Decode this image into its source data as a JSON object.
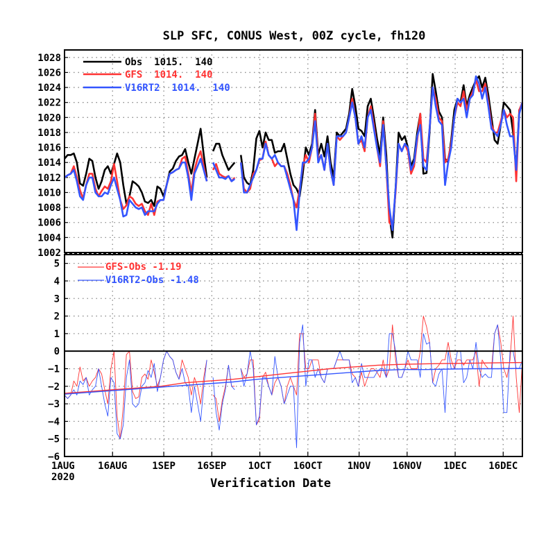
{
  "chart_data": [
    {
      "type": "line",
      "title": "SLP SFC, CONUS West, 00Z cycle, fh120",
      "xlabel": "Verification Date",
      "x_start": "2020-08-01",
      "x_end": "2020-12-22",
      "ylim": [
        1002,
        1029
      ],
      "yticks": [
        "1002",
        "1004",
        "1006",
        "1008",
        "1010",
        "1012",
        "1014",
        "1016",
        "1018",
        "1020",
        "1022",
        "1024",
        "1026",
        "1028"
      ],
      "grid": true,
      "legend_position": "top-left",
      "series": [
        {
          "name": "Obs",
          "legend_text": "Obs  1015.  140",
          "color": "#000000",
          "values": [
            1014.5,
            1015.0,
            1015.0,
            1015.2,
            1014.0,
            1011.2,
            1010.9,
            1012.5,
            1014.5,
            1014.2,
            1012.0,
            1010.5,
            1011.5,
            1013.0,
            1013.5,
            1012.5,
            1013.8,
            1015.2,
            1014.0,
            1011.0,
            1008.5,
            1009.5,
            1011.5,
            1011.2,
            1010.8,
            1010.0,
            1008.8,
            1008.6,
            1009.0,
            1008.2,
            1010.8,
            1010.5,
            1009.5,
            1011.0,
            1012.8,
            1013.2,
            1014.2,
            1014.8,
            1015.0,
            1015.8,
            1014.0,
            1012.5,
            1014.5,
            1016.5,
            1018.5,
            1015.0,
            1012.0,
            null,
            1015.5,
            1016.5,
            1016.5,
            1015.0,
            1014.0,
            1013.0,
            1013.5,
            1014.0,
            null,
            1015.0,
            1012.0,
            1011.3,
            1011.0,
            1013.0,
            1017.2,
            1018.2,
            1016.0,
            1018.0,
            1017.0,
            1017.0,
            1015.3,
            1015.5,
            1015.5,
            1016.5,
            1014.5,
            1012.5,
            1011.0,
            1010.5,
            1009.5,
            1012.5,
            1016.0,
            1015.0,
            1016.5,
            1021.0,
            1015.0,
            1016.5,
            1014.8,
            1017.5,
            1014.0,
            1012.0,
            1018.0,
            1017.5,
            1018.0,
            1018.5,
            1020.5,
            1023.8,
            1021.5,
            1018.5,
            1018.2,
            1017.5,
            1021.5,
            1022.5,
            1020.0,
            1017.2,
            1015.0,
            1020.0,
            1015.0,
            1007.0,
            1004.0,
            1010.5,
            1018.0,
            1017.0,
            1017.5,
            1016.0,
            1013.5,
            1014.5,
            1018.0,
            1020.5,
            1012.5,
            1012.6,
            1018.0,
            1025.8,
            1023.5,
            1020.8,
            1020.0,
            1014.5,
            1014.0,
            1017.0,
            1021.0,
            1022.5,
            1022.0,
            1024.3,
            1021.5,
            1023.0,
            1024.0,
            1025.0,
            1025.5,
            1024.0,
            1025.3,
            1023.0,
            1020.0,
            1017.0,
            1016.5,
            1019.0,
            1022.0,
            1021.5,
            1021.0,
            1018.0,
            1013.0,
            1021.0,
            1021.5
          ]
        },
        {
          "name": "GFS",
          "legend_text": "GFS  1014.  140",
          "color": "#ff3333",
          "values": [
            1012.0,
            1012.3,
            1012.5,
            1013.5,
            1012.0,
            1010.3,
            1009.2,
            1011.0,
            1012.5,
            1012.5,
            1010.5,
            1009.5,
            1010.2,
            1010.8,
            1010.5,
            1011.5,
            1013.8,
            1011.5,
            1009.0,
            1007.8,
            1008.3,
            1009.5,
            1009.2,
            1008.5,
            1008.2,
            1008.5,
            1007.5,
            1007.0,
            1008.5,
            1007.0,
            1008.8,
            1009.0,
            1009.0,
            1011.0,
            1012.5,
            1012.7,
            1013.0,
            1013.2,
            1014.5,
            1014.8,
            1012.5,
            1010.0,
            1013.0,
            1014.5,
            1015.5,
            1013.5,
            1011.5,
            null,
            1013.0,
            1013.8,
            1012.5,
            1012.2,
            1012.0,
            1012.2,
            1011.5,
            1012.0,
            null,
            1014.0,
            1010.5,
            1010.0,
            1010.5,
            1012.5,
            1013.0,
            1014.3,
            1014.5,
            1016.8,
            1015.0,
            1014.5,
            1013.5,
            1014.0,
            1013.5,
            1013.5,
            1012.5,
            1011.0,
            1009.0,
            1008.0,
            1010.5,
            1013.5,
            1015.0,
            1014.0,
            1016.0,
            1020.5,
            1014.5,
            1015.0,
            1013.0,
            1016.5,
            1013.0,
            1011.0,
            1017.5,
            1017.0,
            1017.5,
            1018.0,
            1020.0,
            1022.5,
            1020.0,
            1016.5,
            1017.0,
            1015.5,
            1020.0,
            1021.5,
            1019.0,
            1016.0,
            1013.5,
            1019.5,
            1013.5,
            1006.0,
            1005.5,
            1010.0,
            1016.5,
            1015.5,
            1016.5,
            1015.5,
            1012.5,
            1013.5,
            1017.0,
            1020.5,
            1014.5,
            1014.0,
            1018.5,
            1024.0,
            1022.5,
            1020.0,
            1019.5,
            1014.0,
            1014.5,
            1016.5,
            1020.0,
            1022.0,
            1021.5,
            1023.5,
            1021.0,
            1022.5,
            1023.5,
            1025.0,
            1023.5,
            1023.5,
            1024.5,
            1022.0,
            1019.0,
            1018.0,
            1018.0,
            1019.5,
            1021.0,
            1020.0,
            1020.5,
            1020.0,
            1011.5,
            1021.0,
            1022.0
          ]
        },
        {
          "name": "V16RT2",
          "legend_text": "V16RT2  1014.  140",
          "color": "#3355ff",
          "values": [
            1012.0,
            1012.3,
            1012.5,
            1013.0,
            1011.5,
            1009.5,
            1009.0,
            1011.0,
            1012.0,
            1012.0,
            1010.0,
            1009.5,
            1009.5,
            1010.0,
            1009.8,
            1011.0,
            1012.0,
            1010.5,
            1009.0,
            1006.8,
            1007.0,
            1009.0,
            1008.5,
            1008.0,
            1007.8,
            1008.0,
            1007.0,
            1007.5,
            1007.5,
            1007.5,
            1008.5,
            1009.0,
            1009.0,
            1011.0,
            1012.5,
            1012.7,
            1013.0,
            1013.2,
            1014.0,
            1014.0,
            1012.0,
            1009.0,
            1012.5,
            1013.5,
            1014.5,
            1013.0,
            1011.5,
            null,
            1014.0,
            1013.0,
            1012.0,
            1012.0,
            1011.8,
            1012.2,
            1011.5,
            1011.8,
            null,
            1014.0,
            1010.0,
            1010.0,
            1011.0,
            1012.0,
            1013.0,
            1014.5,
            1014.5,
            1016.5,
            1015.0,
            1014.5,
            1015.0,
            1014.0,
            1013.5,
            1013.5,
            1012.0,
            1010.5,
            1009.0,
            1005.0,
            1010.0,
            1014.0,
            1014.0,
            1014.5,
            1016.0,
            1019.5,
            1014.0,
            1015.0,
            1013.0,
            1016.5,
            1013.0,
            1011.0,
            1017.5,
            1017.5,
            1017.5,
            1018.0,
            1020.0,
            1022.0,
            1020.0,
            1016.5,
            1017.5,
            1016.0,
            1020.0,
            1021.0,
            1018.5,
            1016.0,
            1014.0,
            1019.0,
            1013.5,
            1008.0,
            1005.0,
            1010.5,
            1016.5,
            1015.5,
            1016.5,
            1016.0,
            1013.0,
            1014.0,
            1017.5,
            1019.0,
            1013.5,
            1013.0,
            1018.5,
            1024.0,
            1021.5,
            1019.5,
            1019.0,
            1011.0,
            1014.0,
            1016.0,
            1020.0,
            1022.5,
            1022.0,
            1022.5,
            1020.0,
            1022.5,
            1023.0,
            1025.5,
            1024.5,
            1022.5,
            1024.0,
            1021.5,
            1018.5,
            1018.0,
            1017.5,
            1019.0,
            1021.0,
            1019.0,
            1017.5,
            1017.5,
            1013.0,
            1020.5,
            1022.0
          ]
        }
      ]
    },
    {
      "type": "line",
      "xlabel": "Verification Date",
      "x_start": "2020-08-01",
      "x_end": "2020-12-22",
      "xticks": [
        "1AUG",
        "16AUG",
        "1SEP",
        "16SEP",
        "1OCT",
        "16OCT",
        "1NOV",
        "16NOV",
        "1DEC",
        "16DEC"
      ],
      "xticks_dates": [
        "2020-08-01",
        "2020-08-16",
        "2020-09-01",
        "2020-09-16",
        "2020-10-01",
        "2020-10-16",
        "2020-11-01",
        "2020-11-16",
        "2020-12-01",
        "2020-12-16"
      ],
      "year_label": "2020",
      "ylim": [
        -6,
        5.5
      ],
      "yticks": [
        "-6",
        "-5",
        "-4",
        "-3",
        "-2",
        "-1",
        "0",
        "1",
        "2",
        "3",
        "4",
        "5"
      ],
      "zero_line": true,
      "grid": true,
      "legend_position": "top-left",
      "series": [
        {
          "name": "GFS-Obs",
          "legend_text": "GFS-Obs -1.19",
          "color": "#ff3333",
          "values": [
            -2.5,
            -2.7,
            -2.5,
            -1.7,
            -2.0,
            -0.9,
            -1.7,
            -1.5,
            -2.0,
            -1.7,
            -1.5,
            -1.0,
            -1.3,
            -2.2,
            -3.0,
            -1.0,
            0.0,
            -3.7,
            -5.0,
            -3.2,
            -0.2,
            0.0,
            -2.3,
            -2.7,
            -2.6,
            -1.5,
            -1.3,
            -1.6,
            -0.5,
            -1.2,
            -2.0,
            -1.5,
            -0.5,
            0.0,
            -0.3,
            -0.5,
            -1.2,
            -1.6,
            -0.5,
            -1.0,
            -1.5,
            -2.5,
            -1.5,
            -2.0,
            -3.0,
            -1.5,
            -0.5,
            null,
            -2.5,
            -2.7,
            -4.0,
            -2.8,
            -2.0,
            -0.8,
            -2.0,
            -2.0,
            null,
            -1.0,
            -1.5,
            -1.3,
            -0.5,
            -0.5,
            -4.2,
            -3.9,
            -1.5,
            -1.2,
            -2.0,
            -2.5,
            -1.8,
            -1.5,
            -2.0,
            -3.0,
            -2.0,
            -1.5,
            -2.0,
            -2.5,
            1.0,
            1.0,
            -1.0,
            -1.0,
            -0.5,
            -0.5,
            -0.5,
            -1.5,
            -1.8,
            -1.0,
            -1.0,
            -1.0,
            -0.5,
            -0.5,
            -0.5,
            -0.5,
            -0.5,
            -1.3,
            -1.5,
            -2.0,
            -1.2,
            -2.0,
            -1.5,
            -1.0,
            -1.0,
            -1.2,
            -1.5,
            -0.5,
            -1.5,
            -1.0,
            1.5,
            -0.5,
            -1.5,
            -1.5,
            -1.0,
            -0.5,
            -1.0,
            -1.0,
            -1.0,
            0.0,
            2.0,
            1.4,
            0.5,
            -1.8,
            -1.0,
            -0.8,
            -0.5,
            -0.5,
            0.5,
            -0.5,
            -1.0,
            -0.5,
            -0.5,
            -0.8,
            -0.5,
            -0.5,
            -0.5,
            0.0,
            -2.0,
            -0.5,
            -0.8,
            -1.0,
            -1.0,
            1.0,
            1.5,
            0.5,
            -1.0,
            -1.5,
            -0.5,
            2.0,
            -1.5,
            -3.5,
            -0.5
          ]
        },
        {
          "name": "V16RT2-Obs",
          "legend_text": "V16RT2-Obs -1.48",
          "color": "#3355ff",
          "values": [
            -2.5,
            -2.7,
            -2.5,
            -2.2,
            -2.5,
            -1.7,
            -1.9,
            -1.5,
            -2.5,
            -2.2,
            -2.0,
            -1.0,
            -2.0,
            -3.0,
            -3.7,
            -1.5,
            -1.8,
            -4.7,
            -5.0,
            -4.2,
            -1.5,
            -0.5,
            -3.0,
            -3.2,
            -3.0,
            -2.0,
            -1.8,
            -1.1,
            -1.5,
            -0.7,
            -2.3,
            -1.5,
            -0.5,
            0.0,
            -0.3,
            -0.5,
            -1.2,
            -1.6,
            -1.0,
            -1.8,
            -2.0,
            -3.5,
            -2.0,
            -3.0,
            -4.0,
            -2.0,
            -0.5,
            null,
            -1.5,
            -3.5,
            -4.5,
            -3.0,
            -2.2,
            -0.8,
            -2.0,
            -2.2,
            null,
            -1.0,
            -2.0,
            -1.3,
            0.0,
            -1.0,
            -4.2,
            -3.7,
            -1.5,
            -1.5,
            -2.0,
            -2.5,
            -0.3,
            -1.5,
            -2.0,
            -3.0,
            -2.5,
            -2.0,
            -2.0,
            -5.5,
            0.5,
            1.5,
            -2.0,
            -0.5,
            -0.5,
            -1.5,
            -1.0,
            -1.5,
            -1.8,
            -1.0,
            -1.0,
            -1.0,
            -0.5,
            0.0,
            -0.5,
            -0.5,
            -0.5,
            -1.8,
            -1.5,
            -2.0,
            -0.7,
            -1.5,
            -1.5,
            -1.5,
            -1.5,
            -1.2,
            -1.0,
            -1.0,
            -1.5,
            1.0,
            1.0,
            0.0,
            -1.5,
            -1.5,
            -1.0,
            0.0,
            -0.5,
            -0.5,
            -0.5,
            -1.5,
            1.0,
            0.4,
            0.5,
            -1.8,
            -2.0,
            -1.3,
            -1.0,
            -3.5,
            0.0,
            -1.0,
            -1.0,
            0.0,
            0.0,
            -1.8,
            -1.5,
            -0.5,
            -1.0,
            0.5,
            -1.0,
            -1.5,
            -1.3,
            -1.5,
            -1.5,
            1.0,
            1.5,
            -0.5,
            -3.5,
            -3.5,
            0.0,
            0.0,
            -1.0,
            -1.0,
            -0.5
          ]
        },
        {
          "name": "GFS-Obs mean",
          "color": "#ff3333",
          "values": [
            -2.4,
            -2.3,
            -2.2,
            -2.1,
            -2.0,
            -1.8,
            -1.7,
            -1.6,
            -1.45,
            -1.3,
            -1.15,
            -1.0,
            -0.9,
            -0.8,
            -0.75,
            -0.72,
            -0.7,
            -0.68,
            -0.66,
            -0.65
          ]
        },
        {
          "name": "V16RT2-Obs mean",
          "color": "#3355ff",
          "values": [
            -2.45,
            -2.35,
            -2.25,
            -2.15,
            -2.05,
            -1.95,
            -1.85,
            -1.75,
            -1.6,
            -1.5,
            -1.4,
            -1.3,
            -1.2,
            -1.1,
            -1.05,
            -1.05,
            -1.02,
            -1.0,
            -1.0,
            -0.98
          ]
        }
      ]
    }
  ]
}
